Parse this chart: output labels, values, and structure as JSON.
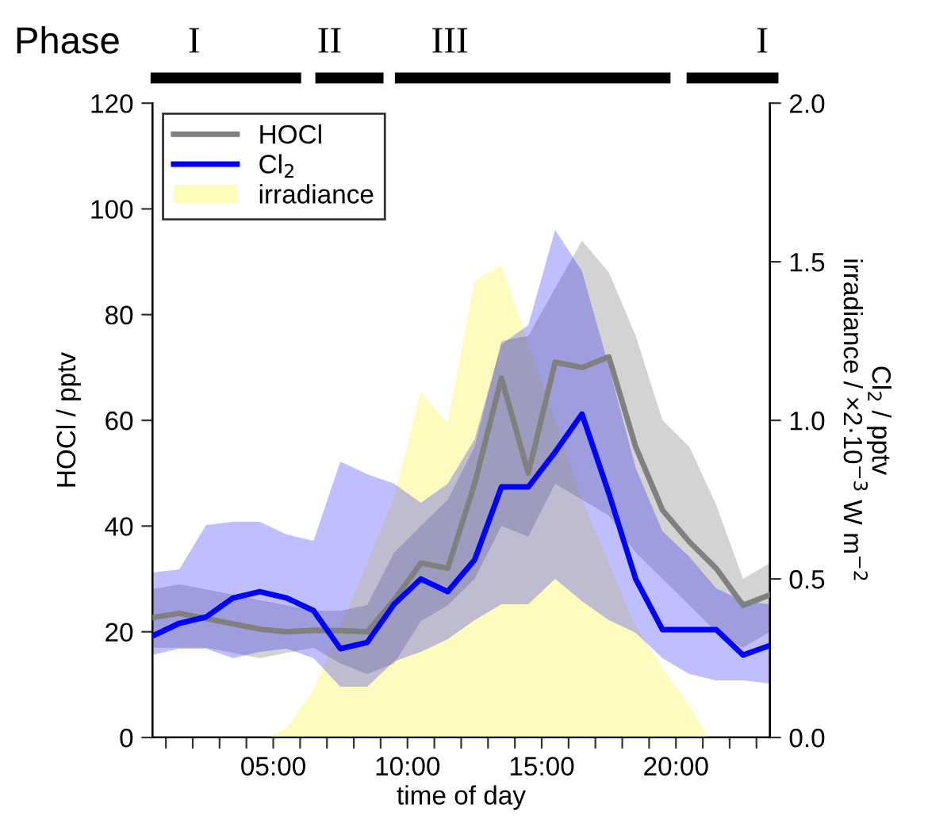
{
  "chart_data": {
    "type": "line",
    "xlabel": "time of day",
    "ylabel": "HOCl / pptv",
    "y2label": "Cl$_{2}$ / pptv\nirradiance / ×2·10$^{−3}$ W m$^{−2}$",
    "x": [
      0.5,
      1.5,
      2.5,
      3.5,
      4.5,
      5.5,
      6.5,
      7.5,
      8.5,
      9.5,
      10.5,
      11.5,
      12.5,
      13.5,
      14.5,
      15.5,
      16.5,
      17.5,
      18.5,
      19.5,
      20.5,
      21.5,
      22.5,
      23.5
    ],
    "series": [
      {
        "name": "HOCl",
        "axis": "y",
        "color": "#808080",
        "values": [
          22.7,
          23.5,
          22.5,
          21.5,
          20.5,
          20,
          20.3,
          20.2,
          20,
          26,
          33,
          32,
          48,
          68,
          50,
          71,
          70,
          72,
          55,
          43,
          37,
          32,
          25,
          27
        ],
        "lower": [
          17,
          17,
          17,
          16,
          15,
          16,
          17,
          14,
          12,
          14,
          22,
          25,
          30,
          40,
          38,
          48,
          45,
          42,
          35,
          30,
          25,
          20,
          17,
          20
        ],
        "upper": [
          28,
          29,
          28,
          27,
          26,
          25,
          24,
          24,
          25,
          35,
          40,
          45,
          55,
          75,
          76,
          85,
          94,
          88,
          76,
          60,
          55,
          44,
          30,
          33
        ]
      },
      {
        "name": "Cl$_{2}$",
        "axis": "y2",
        "color": "#0000ff",
        "values": [
          0.32,
          0.36,
          0.38,
          0.44,
          0.46,
          0.44,
          0.4,
          0.28,
          0.3,
          0.42,
          0.5,
          0.46,
          0.56,
          0.79,
          0.79,
          0.9,
          1.02,
          0.77,
          0.5,
          0.34,
          0.34,
          0.34,
          0.26,
          0.29
        ],
        "lower": [
          0.26,
          0.28,
          0.28,
          0.25,
          0.27,
          0.28,
          0.25,
          0.16,
          0.16,
          0.24,
          0.27,
          0.31,
          0.37,
          0.42,
          0.42,
          0.5,
          0.43,
          0.37,
          0.33,
          0.25,
          0.2,
          0.18,
          0.18,
          0.17
        ],
        "upper": [
          0.52,
          0.53,
          0.67,
          0.68,
          0.68,
          0.64,
          0.62,
          0.87,
          0.83,
          0.8,
          0.74,
          0.8,
          0.94,
          1.24,
          1.3,
          1.6,
          1.47,
          1.17,
          0.85,
          0.65,
          0.57,
          0.47,
          0.43,
          0.42
        ]
      },
      {
        "name": "irradiance",
        "type": "area",
        "axis": "y2",
        "color": "#fffbb8",
        "x": [
          4.8,
          5.5,
          6.5,
          7.5,
          8.5,
          9.5,
          10.5,
          11.5,
          12.5,
          13.5,
          14.5,
          15.5,
          16.5,
          17.5,
          18.5,
          19.5,
          20.5,
          21.2
        ],
        "values": [
          0,
          0.03,
          0.15,
          0.35,
          0.55,
          0.76,
          1.09,
          0.99,
          1.44,
          1.49,
          1.24,
          1.0,
          0.75,
          0.55,
          0.35,
          0.22,
          0.1,
          0
        ]
      }
    ],
    "xlim": [
      0.5,
      23.5
    ],
    "xticks": [
      {
        "value": 1,
        "label": null
      },
      {
        "value": 2,
        "label": null
      },
      {
        "value": 3,
        "label": null
      },
      {
        "value": 4,
        "label": null
      },
      {
        "value": 5,
        "label": "05:00"
      },
      {
        "value": 6,
        "label": null
      },
      {
        "value": 7,
        "label": null
      },
      {
        "value": 8,
        "label": null
      },
      {
        "value": 9,
        "label": null
      },
      {
        "value": 10,
        "label": "10:00"
      },
      {
        "value": 11,
        "label": null
      },
      {
        "value": 12,
        "label": null
      },
      {
        "value": 13,
        "label": null
      },
      {
        "value": 14,
        "label": null
      },
      {
        "value": 15,
        "label": "15:00"
      },
      {
        "value": 16,
        "label": null
      },
      {
        "value": 17,
        "label": null
      },
      {
        "value": 18,
        "label": null
      },
      {
        "value": 19,
        "label": null
      },
      {
        "value": 20,
        "label": "20:00"
      },
      {
        "value": 21,
        "label": null
      },
      {
        "value": 22,
        "label": null
      },
      {
        "value": 23,
        "label": null
      }
    ],
    "ylim": [
      0,
      120
    ],
    "yticks": [
      0,
      20,
      40,
      60,
      80,
      100,
      120
    ],
    "y2lim": [
      0,
      2.0
    ],
    "y2ticks": [
      {
        "value": 0,
        "label": "0.0"
      },
      {
        "value": 0.5,
        "label": "0.5"
      },
      {
        "value": 1,
        "label": "1.0"
      },
      {
        "value": 1.5,
        "label": "1.5"
      },
      {
        "value": 2,
        "label": "2.0"
      }
    ],
    "annotations": [
      "Phase",
      "I",
      "II",
      "III",
      "I"
    ],
    "legend": "top left",
    "grid": false
  }
}
